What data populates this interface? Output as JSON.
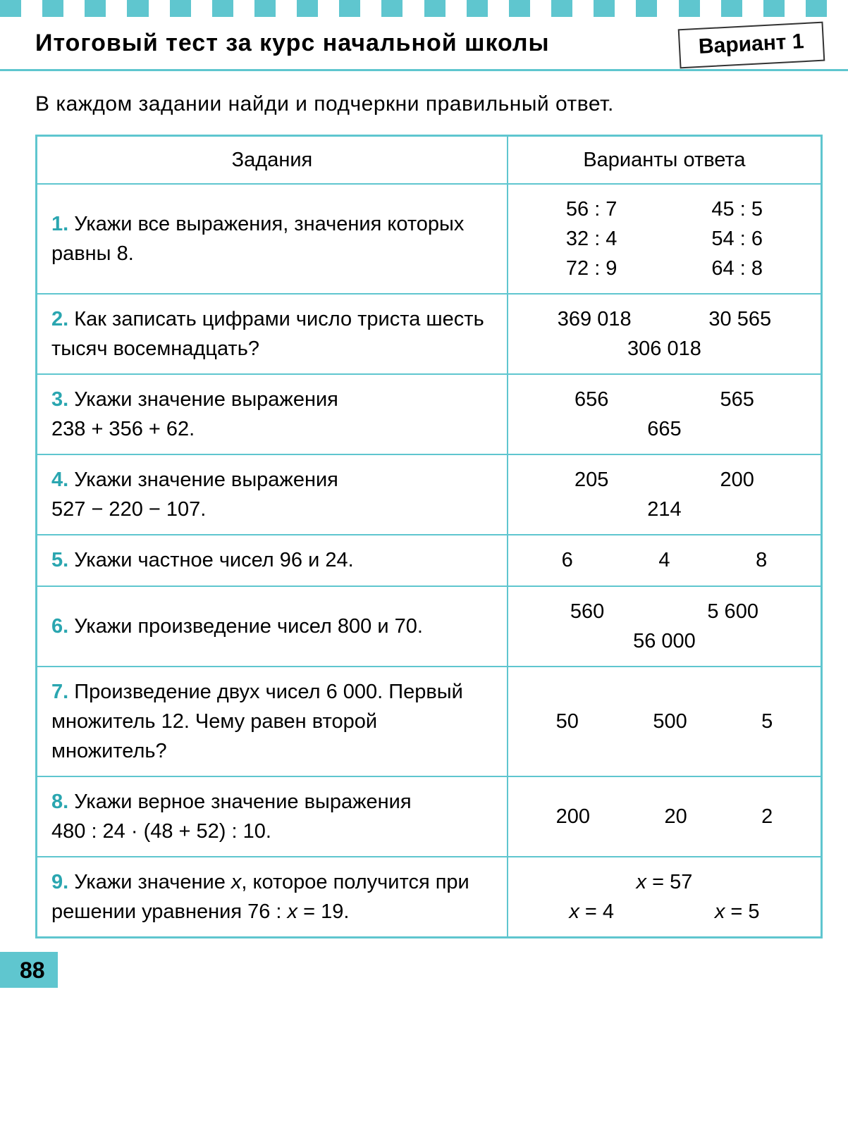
{
  "header": {
    "title": "Итоговый тест за курс начальной школы",
    "variant": "Вариант 1"
  },
  "instructions": "В каждом задании найди и подчеркни правильный ответ.",
  "table": {
    "columns": {
      "tasks": "Задания",
      "answers": "Варианты ответа"
    },
    "rows": [
      {
        "num": "1.",
        "text": "Укажи все выражения, значения которых равны 8.",
        "answers_layout": "grid3x2",
        "answers": [
          "56 : 7",
          "45 : 5",
          "32 : 4",
          "54 : 6",
          "72 : 9",
          "64 : 8"
        ]
      },
      {
        "num": "2.",
        "text": "Как записать цифрами число триста шесть тысяч восемнадцать?",
        "answers_layout": "two_then_one",
        "answers": [
          "369 018",
          "30 565",
          "306 018"
        ]
      },
      {
        "num": "3.",
        "text_prefix": "Укажи значение выражения",
        "text_expr": "238 + 356 + 62.",
        "answers_layout": "two_then_one",
        "answers": [
          "656",
          "565",
          "665"
        ]
      },
      {
        "num": "4.",
        "text_prefix": "Укажи значение выражения",
        "text_expr": "527 − 220 − 107.",
        "answers_layout": "two_then_one",
        "answers": [
          "205",
          "200",
          "214"
        ]
      },
      {
        "num": "5.",
        "text": "Укажи частное чисел 96 и 24.",
        "answers_layout": "row3",
        "answers": [
          "6",
          "4",
          "8"
        ]
      },
      {
        "num": "6.",
        "text": "Укажи произведение чисел 800 и 70.",
        "answers_layout": "two_then_one",
        "answers": [
          "560",
          "5 600",
          "56 000"
        ]
      },
      {
        "num": "7.",
        "text": "Произведение двух чисел 6 000. Первый множитель 12. Чему равен второй множитель?",
        "answers_layout": "row3",
        "answers": [
          "50",
          "500",
          "5"
        ]
      },
      {
        "num": "8.",
        "text_prefix": "Укажи верное значение выражения",
        "text_expr": "480 : 24 · (48 + 52) : 10.",
        "answers_layout": "row3",
        "answers": [
          "200",
          "20",
          "2"
        ]
      },
      {
        "num": "9.",
        "text_html": "Укажи значение x, которое получится при решении уравнения 76 : x = 19.",
        "answers_layout": "one_then_two",
        "answers": [
          "x = 57",
          "x = 4",
          "x = 5"
        ]
      }
    ]
  },
  "page_number": "88",
  "styling": {
    "accent_color": "#5fc6cf",
    "text_color": "#000000",
    "qnum_color": "#2aa6b0",
    "background": "#ffffff",
    "title_fontsize": 34,
    "body_fontsize": 29,
    "border_width": 2,
    "tick_count": 40
  }
}
